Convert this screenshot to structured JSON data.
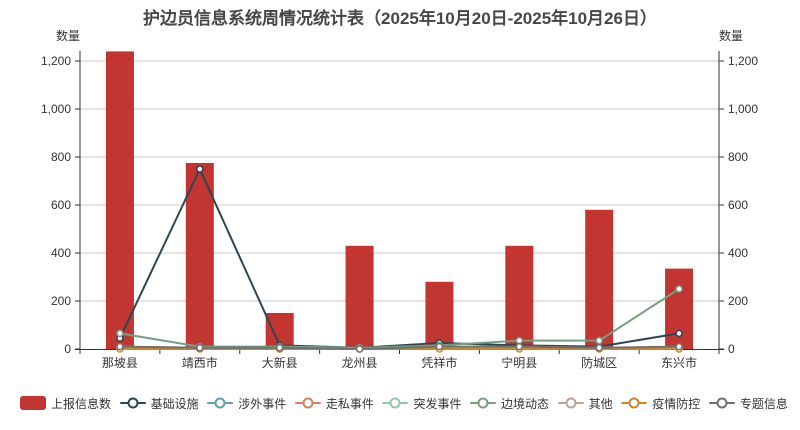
{
  "title": "护边员信息系统周情况统计表（2025年10月20日-2025年10月26日）",
  "axis_label_left": "数量",
  "axis_label_right": "数量",
  "chart_data": {
    "type": "bar",
    "subtype": "combo-bar-line",
    "title": "护边员信息系统周情况统计表（2025年10月20日-2025年10月26日）",
    "xlabel": "",
    "ylabel": "数量",
    "ylabel_right": "数量",
    "ylim": [
      0,
      1200
    ],
    "yticks": [
      0,
      200,
      400,
      600,
      800,
      1000,
      1200
    ],
    "ytick_labels": [
      "0",
      "200",
      "400",
      "600",
      "800",
      "1,000",
      "1,200"
    ],
    "grid": true,
    "legend_position": "bottom",
    "categories": [
      "那坡县",
      "靖西市",
      "大新县",
      "龙州县",
      "凭祥市",
      "宁明县",
      "防城区",
      "东兴市"
    ],
    "series": [
      {
        "name": "上报信息数",
        "type": "bar",
        "color": "#c23531",
        "values": [
          1240,
          775,
          150,
          430,
          280,
          430,
          580,
          335
        ]
      },
      {
        "name": "基础设施",
        "type": "line",
        "color": "#2f4554",
        "values": [
          45,
          750,
          15,
          5,
          25,
          15,
          10,
          65
        ]
      },
      {
        "name": "涉外事件",
        "type": "line",
        "color": "#61a0a8",
        "values": [
          5,
          5,
          5,
          0,
          5,
          5,
          5,
          5
        ]
      },
      {
        "name": "走私事件",
        "type": "line",
        "color": "#d48265",
        "values": [
          10,
          5,
          5,
          0,
          5,
          10,
          5,
          5
        ]
      },
      {
        "name": "突发事件",
        "type": "line",
        "color": "#91c7ae",
        "values": [
          5,
          0,
          0,
          0,
          5,
          5,
          5,
          0
        ]
      },
      {
        "name": "边境动态",
        "type": "line",
        "color": "#749f83",
        "values": [
          65,
          10,
          10,
          5,
          15,
          35,
          35,
          250
        ]
      },
      {
        "name": "其他",
        "type": "line",
        "color": "#bda29a",
        "values": [
          5,
          5,
          0,
          0,
          5,
          5,
          5,
          5
        ]
      },
      {
        "name": "疫情防控",
        "type": "line",
        "color": "#ca8622",
        "values": [
          0,
          0,
          0,
          0,
          0,
          0,
          0,
          0
        ]
      },
      {
        "name": "专题信息",
        "type": "line",
        "color": "#6e7074",
        "values": [
          10,
          5,
          5,
          0,
          10,
          10,
          5,
          10
        ]
      }
    ],
    "style": {
      "axis_color": "#333333",
      "grid_color": "#cccccc",
      "tick_label_color": "#333333",
      "title_color": "#464646",
      "background": "#ffffff"
    }
  }
}
